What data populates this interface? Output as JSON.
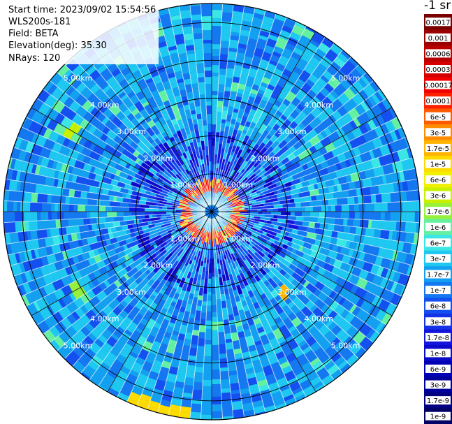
{
  "info": {
    "start_time": "Start time: 2023/09/02 15:54:56",
    "instrument": "WLS200s-181",
    "field": "Field: BETA",
    "elevation": "Elevation(deg): 35.30",
    "nrays": "NRays: 120"
  },
  "chart_data": {
    "type": "heatmap",
    "projection": "polar",
    "range_rings_km": [
      1,
      2,
      3,
      4,
      5
    ],
    "ring_labels": [
      "1.00km",
      "2.00km",
      "3.00km",
      "4.00km",
      "5.00km"
    ],
    "max_range_km": 5.5,
    "n_rays": 120,
    "colorbar": {
      "unit": "-1 sr",
      "labels": [
        "0.0017",
        "0.001",
        "0.0006",
        "0.0003",
        "0.00017",
        "0.0001",
        "6e-5",
        "3e-5",
        "1.7e-5",
        "1e-5",
        "6e-6",
        "3e-6",
        "1.7e-6",
        "1e-6",
        "6e-7",
        "3e-7",
        "1.7e-7",
        "1e-7",
        "6e-8",
        "3e-8",
        "1.7e-8",
        "1e-8",
        "6e-9",
        "3e-9",
        "1.7e-9",
        "1e-9"
      ],
      "colors": [
        "#7a0000",
        "#9a0000",
        "#b80000",
        "#d40000",
        "#f00000",
        "#ff2000",
        "#ff5a00",
        "#ff8c00",
        "#ffb400",
        "#ffdc00",
        "#f0f000",
        "#c8f000",
        "#96f03c",
        "#64f0a0",
        "#3ce6e6",
        "#1ec8f0",
        "#14a0f0",
        "#1478f0",
        "#1450f0",
        "#1432e6",
        "#1414dc",
        "#0a0ac8",
        "#0000b4",
        "#00009a",
        "#000080",
        "#000066"
      ]
    },
    "features": {
      "near_ring": {
        "inner_km": 0.5,
        "outer_km": 0.85,
        "value_index": 5
      },
      "far_arcs": [
        {
          "azimuth_deg": 195,
          "range_km": 5.35,
          "width_deg": 18,
          "value_index": 9
        },
        {
          "azimuth_deg": 138,
          "range_km": 2.85,
          "width_deg": 8,
          "value_index": 8
        },
        {
          "azimuth_deg": 300,
          "range_km": 4.3,
          "width_deg": 5,
          "value_index": 11
        },
        {
          "azimuth_deg": 240,
          "range_km": 4.1,
          "width_deg": 4,
          "value_index": 12
        }
      ]
    }
  }
}
